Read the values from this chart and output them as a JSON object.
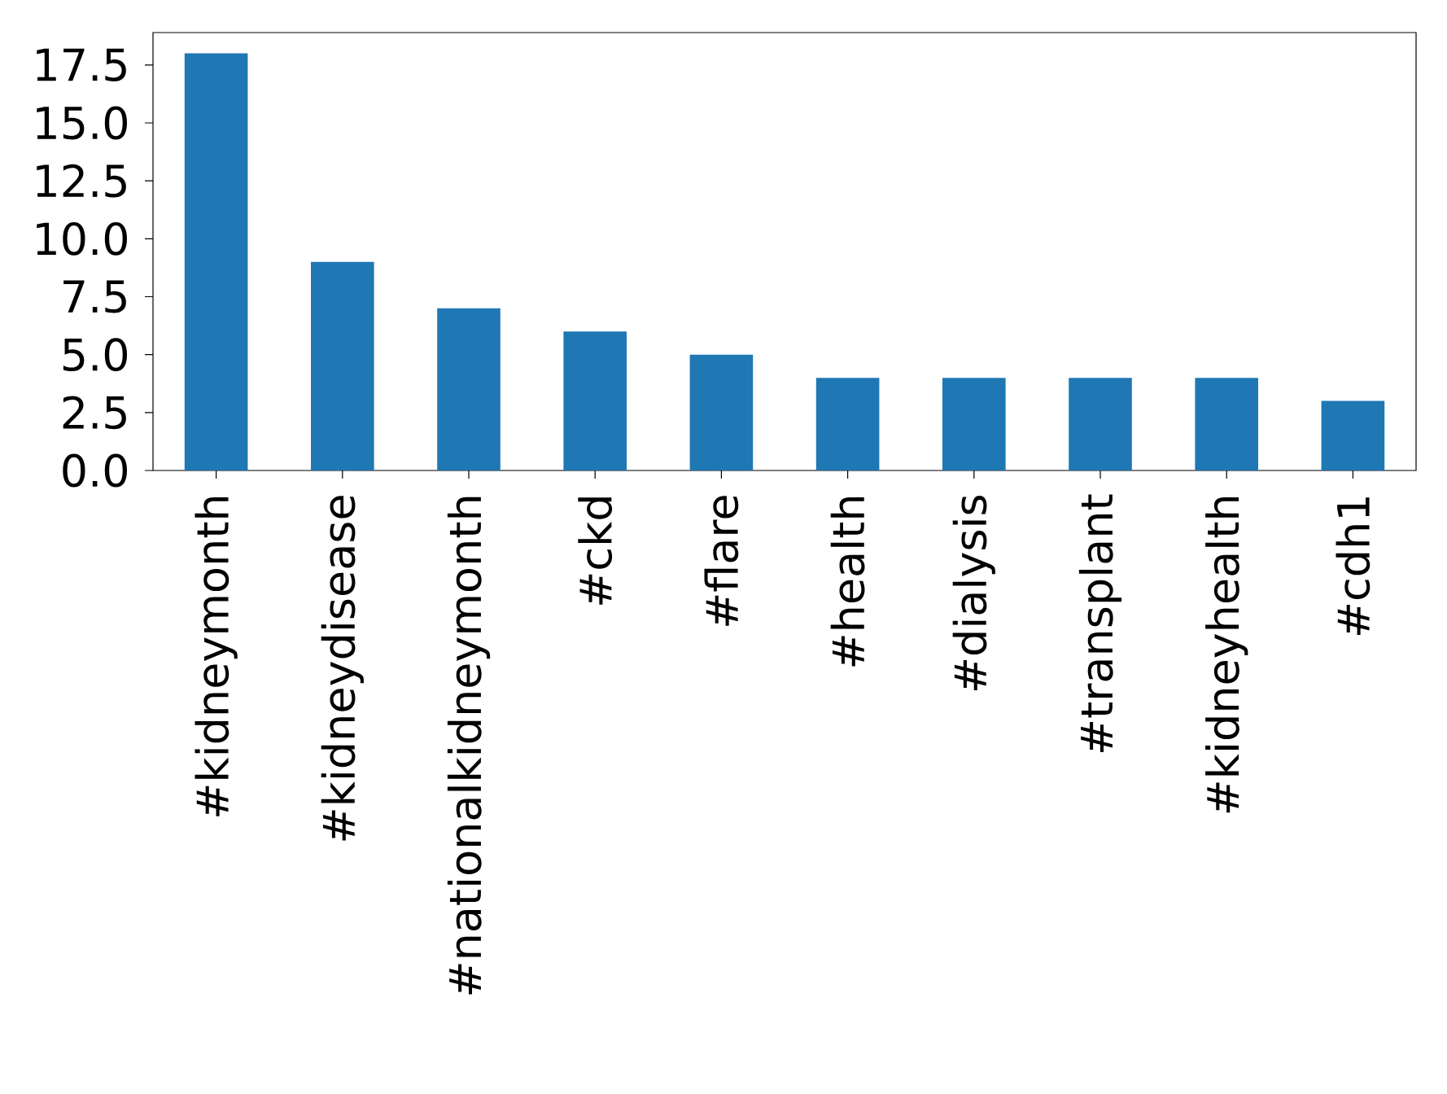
{
  "chart_data": {
    "type": "bar",
    "categories": [
      "#kidneymonth",
      "#kidneydisease",
      "#nationalkidneymonth",
      "#ckd",
      "#flare",
      "#health",
      "#dialysis",
      "#transplant",
      "#kidneyhealth",
      "#cdh1"
    ],
    "values": [
      18,
      9,
      7,
      6,
      5,
      4,
      4,
      4,
      4,
      3
    ],
    "color": "#1f77b4",
    "ylim": [
      0,
      18.9
    ],
    "yticks": [
      {
        "value": 0,
        "label": "0.0"
      },
      2.5,
      {
        "value": 5,
        "label": "5.0"
      },
      7.5,
      {
        "value": 10,
        "label": "10.0"
      },
      12.5,
      {
        "value": 15,
        "label": "15.0"
      },
      17.5
    ]
  }
}
